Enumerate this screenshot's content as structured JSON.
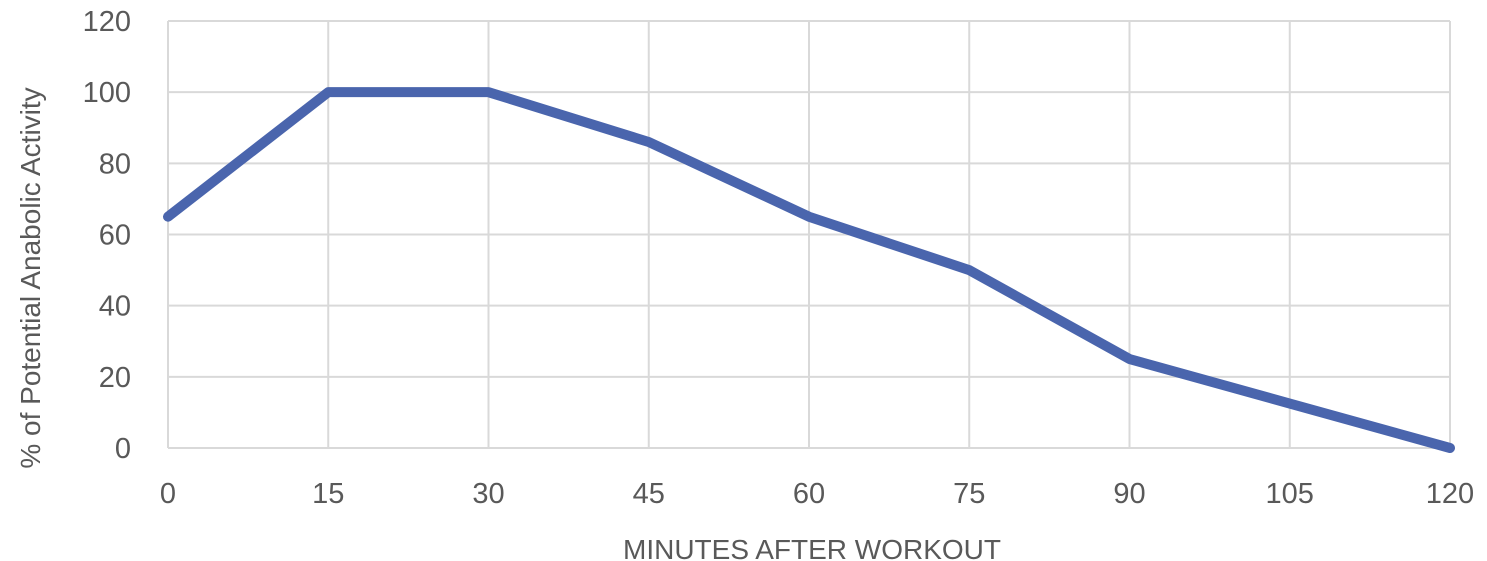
{
  "chart_data": {
    "type": "line",
    "title": "",
    "xlabel": "MINUTES AFTER WORKOUT",
    "ylabel": "% of Potential Anabolic Activity",
    "x": [
      0,
      15,
      30,
      45,
      60,
      75,
      90,
      105,
      120
    ],
    "series": [
      {
        "values": [
          65,
          100,
          100,
          86,
          65,
          50,
          25,
          12.5,
          0
        ]
      }
    ],
    "xlim": [
      0,
      120
    ],
    "ylim": [
      0,
      120
    ],
    "x_ticks": [
      "0",
      "15",
      "30",
      "45",
      "60",
      "75",
      "90",
      "105",
      "120"
    ],
    "y_ticks": [
      "0",
      "20",
      "40",
      "60",
      "80",
      "100",
      "120"
    ],
    "grid": true,
    "legend": "none",
    "colors": {
      "series": "#4a65ad",
      "grid": "#d9d9d9",
      "text": "#595959"
    }
  }
}
